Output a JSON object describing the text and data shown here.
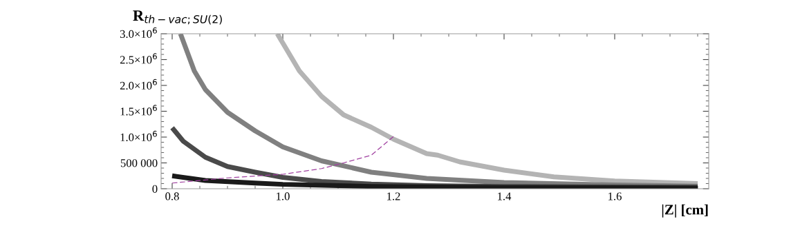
{
  "chart_data": {
    "type": "line",
    "xlabel": "|Z| [cm]",
    "ylabel": "R$_{th−vac;SU(2)}$",
    "xlim": [
      0.78,
      1.77
    ],
    "xticks": [
      {
        "value": 0.8,
        "label": "0.8"
      },
      {
        "value": 1.0,
        "label": "1.0"
      },
      {
        "value": 1.2,
        "label": "1.2"
      },
      {
        "value": 1.4,
        "label": "1.4"
      },
      {
        "value": 1.6,
        "label": "1.6"
      }
    ],
    "ylim": [
      0,
      3000000
    ],
    "yticks": [
      0,
      {
        "value": 500000,
        "label": "500 000"
      },
      {
        "value": 1000000,
        "label": "1.0×10$^{6}$"
      },
      {
        "value": 1500000,
        "label": "1.5×10$^{6}$"
      },
      {
        "value": 2000000,
        "label": "2.0×10$^{6}$"
      },
      {
        "value": 2500000,
        "label": "2.5×10$^{6}$"
      },
      {
        "value": 3000000,
        "label": "3.0×10$^{6}$"
      }
    ],
    "grid": false,
    "legend": false,
    "series": [
      {
        "color": "#b4b4b4",
        "x": [
          0.99,
          1.03,
          1.07,
          1.11,
          1.16,
          1.2,
          1.26,
          1.28,
          1.32,
          1.4,
          1.49,
          1.6,
          1.75
        ],
        "values": [
          3000000,
          2280000,
          1790000,
          1430000,
          1190000,
          960000,
          680000,
          650000,
          520000,
          360000,
          230000,
          150000,
          100000
        ]
      },
      {
        "color": "#808080",
        "x": [
          0.815,
          0.84,
          0.86,
          0.9,
          0.95,
          1.0,
          1.07,
          1.16,
          1.26,
          1.4,
          1.6,
          1.75
        ],
        "values": [
          3000000,
          2280000,
          1920000,
          1480000,
          1120000,
          810000,
          540000,
          320000,
          200000,
          120000,
          75000,
          50000
        ]
      },
      {
        "color": "#4a4a4a",
        "x": [
          0.8,
          0.82,
          0.86,
          0.9,
          0.95,
          1.0,
          1.07,
          1.16,
          1.26,
          1.4,
          1.75
        ],
        "values": [
          1180000,
          920000,
          610000,
          430000,
          320000,
          220000,
          140000,
          90000,
          60000,
          45000,
          30000
        ]
      },
      {
        "color": "#1a1a1a",
        "x": [
          0.8,
          0.86,
          0.95,
          1.0,
          1.16,
          1.4,
          1.75
        ],
        "values": [
          250000,
          160000,
          110000,
          85000,
          45000,
          25000,
          15000
        ]
      },
      {
        "color": "#a040a0",
        "line_style": "dashed",
        "x": [
          0.8,
          0.9,
          1.0,
          1.07,
          1.11,
          1.16,
          1.2
        ],
        "values": [
          110000,
          210000,
          280000,
          390000,
          500000,
          650000,
          1010000
        ]
      }
    ]
  }
}
